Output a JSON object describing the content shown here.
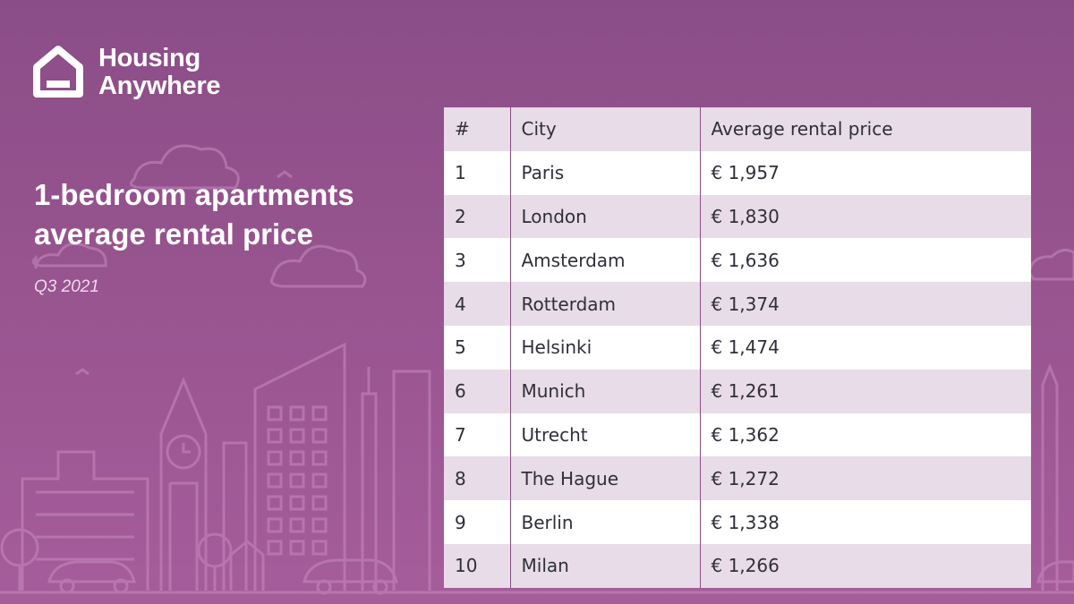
{
  "brand": {
    "line1": "Housing",
    "line2": "Anywhere"
  },
  "headline": {
    "line1": "1-bedroom apartments",
    "line2": "average rental price"
  },
  "period": "Q3 2021",
  "table": {
    "headers": [
      "#",
      "City",
      "Average rental price"
    ],
    "rows": [
      {
        "rank": "1",
        "city": "Paris",
        "price": "€ 1,957"
      },
      {
        "rank": "2",
        "city": "London",
        "price": "€ 1,830"
      },
      {
        "rank": "3",
        "city": "Amsterdam",
        "price": "€ 1,636"
      },
      {
        "rank": "4",
        "city": "Rotterdam",
        "price": "€ 1,374"
      },
      {
        "rank": "5",
        "city": "Helsinki",
        "price": "€ 1,474"
      },
      {
        "rank": "6",
        "city": "Munich",
        "price": "€ 1,261"
      },
      {
        "rank": "7",
        "city": "Utrecht",
        "price": "€ 1,362"
      },
      {
        "rank": "8",
        "city": "The Hague",
        "price": "€ 1,272"
      },
      {
        "rank": "9",
        "city": "Berlin",
        "price": "€ 1,338"
      },
      {
        "rank": "10",
        "city": "Milan",
        "price": "€ 1,266"
      }
    ]
  },
  "chart_data": {
    "type": "table",
    "columns": [
      "#",
      "City",
      "Average rental price"
    ],
    "rows": [
      [
        1,
        "Paris",
        1957
      ],
      [
        2,
        "London",
        1830
      ],
      [
        3,
        "Amsterdam",
        1636
      ],
      [
        4,
        "Rotterdam",
        1374
      ],
      [
        5,
        "Helsinki",
        1474
      ],
      [
        6,
        "Munich",
        1261
      ],
      [
        7,
        "Utrecht",
        1362
      ],
      [
        8,
        "The Hague",
        1272
      ],
      [
        9,
        "Berlin",
        1338
      ],
      [
        10,
        "Milan",
        1266
      ]
    ]
  },
  "colors": {
    "background": "#8b4d88",
    "row_shade": "#e8dce8",
    "row_plain": "#ffffff",
    "text": "#2f2f3a"
  }
}
